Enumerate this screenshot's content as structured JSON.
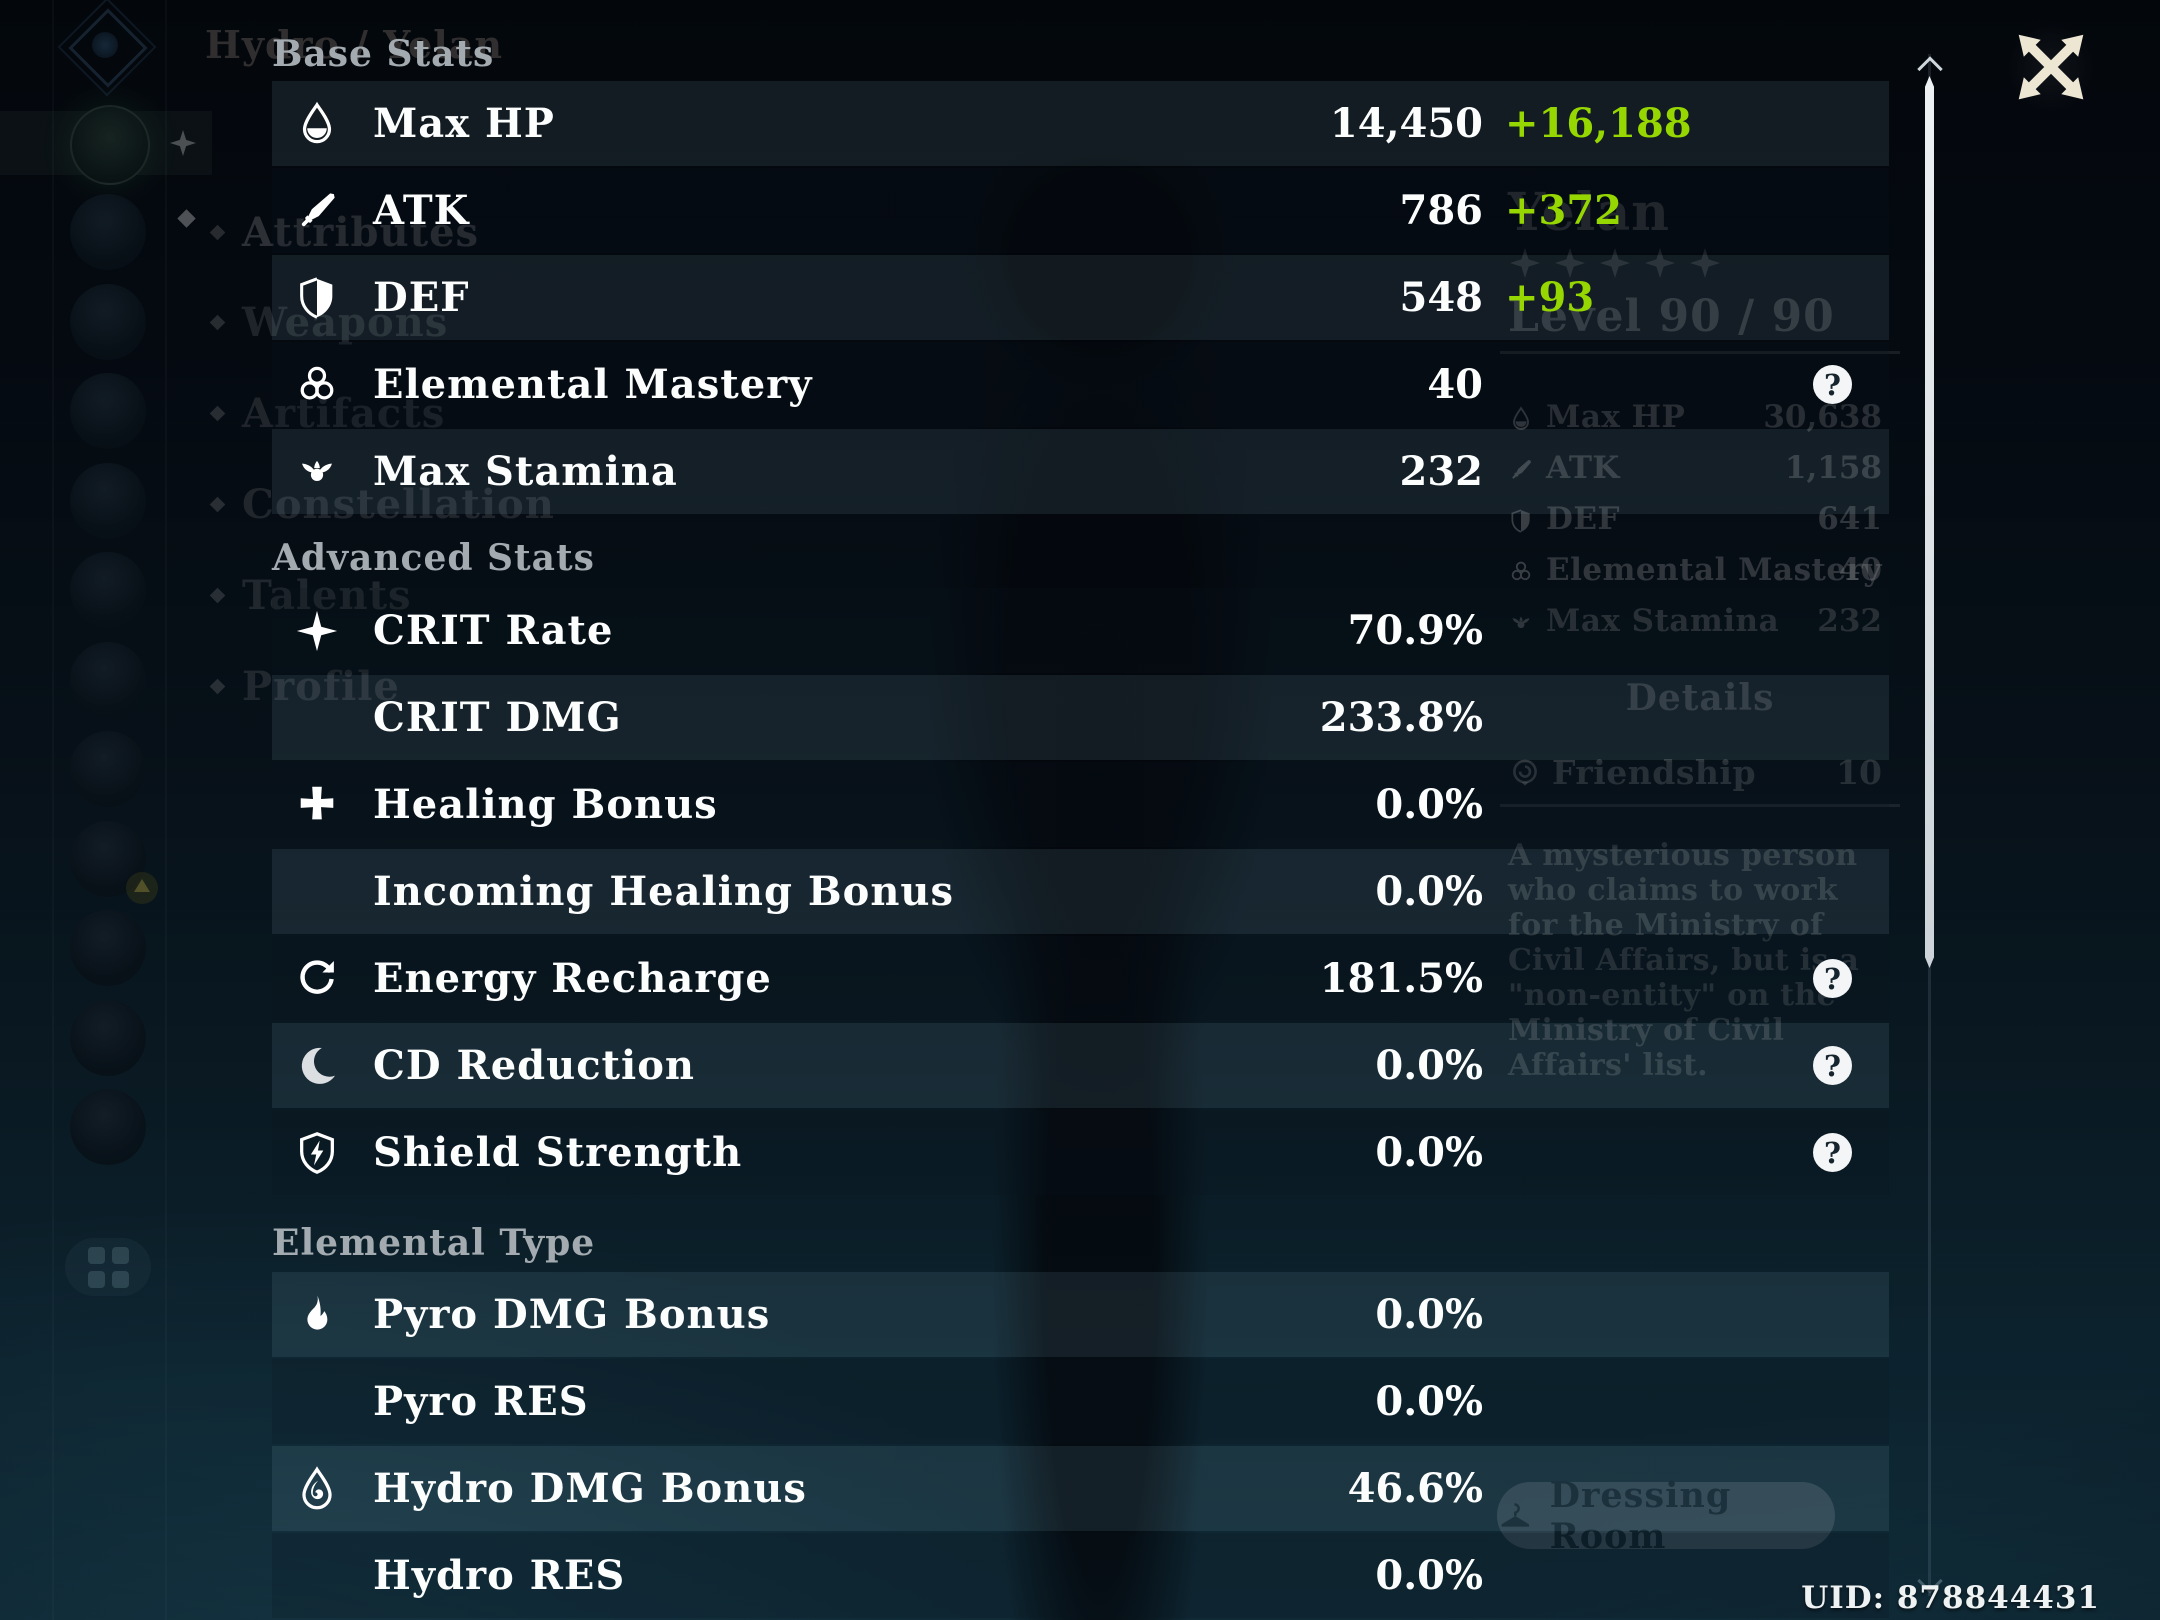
{
  "overlay": {
    "help_glyph": "?",
    "sections": [
      {
        "title": "Base Stats",
        "rows": [
          {
            "label": "Max HP",
            "icon": "hp",
            "value": "14,450",
            "bonus": "+16,188",
            "help": false
          },
          {
            "label": "ATK",
            "icon": "atk",
            "value": "786",
            "bonus": "+372",
            "help": false
          },
          {
            "label": "DEF",
            "icon": "def",
            "value": "548",
            "bonus": "+93",
            "help": false
          },
          {
            "label": "Elemental Mastery",
            "icon": "em",
            "value": "40",
            "bonus": "",
            "help": true
          },
          {
            "label": "Max Stamina",
            "icon": "stamina",
            "value": "232",
            "bonus": "",
            "help": false
          }
        ]
      },
      {
        "title": "Advanced Stats",
        "rows": [
          {
            "label": "CRIT Rate",
            "icon": "crit",
            "value": "70.9%",
            "bonus": "",
            "help": false
          },
          {
            "label": "CRIT DMG",
            "icon": "",
            "value": "233.8%",
            "bonus": "",
            "help": false
          },
          {
            "label": "Healing Bonus",
            "icon": "healing",
            "value": "0.0%",
            "bonus": "",
            "help": false
          },
          {
            "label": "Incoming Healing Bonus",
            "icon": "",
            "value": "0.0%",
            "bonus": "",
            "help": false
          },
          {
            "label": "Energy Recharge",
            "icon": "energy",
            "value": "181.5%",
            "bonus": "",
            "help": true
          },
          {
            "label": "CD Reduction",
            "icon": "cooldown",
            "value": "0.0%",
            "bonus": "",
            "help": true
          },
          {
            "label": "Shield Strength",
            "icon": "shieldbolt",
            "value": "0.0%",
            "bonus": "",
            "help": true
          }
        ]
      },
      {
        "title": "Elemental Type",
        "rows": [
          {
            "label": "Pyro DMG Bonus",
            "icon": "pyro",
            "value": "0.0%",
            "bonus": "",
            "help": false
          },
          {
            "label": "Pyro RES",
            "icon": "",
            "value": "0.0%",
            "bonus": "",
            "help": false
          },
          {
            "label": "Hydro DMG Bonus",
            "icon": "hydro",
            "value": "46.6%",
            "bonus": "",
            "help": false
          },
          {
            "label": "Hydro RES",
            "icon": "",
            "value": "0.0%",
            "bonus": "",
            "help": false
          }
        ]
      }
    ]
  },
  "background": {
    "header": "Hydro / Yelan",
    "nav": [
      "Attributes",
      "Weapons",
      "Artifacts",
      "Constellation",
      "Talents",
      "Profile"
    ],
    "panel": {
      "name": "Yelan",
      "stars": 5,
      "level": "Level 90 / 90",
      "stats": [
        {
          "label": "Max HP",
          "icon": "hp",
          "value": "30,638"
        },
        {
          "label": "ATK",
          "icon": "atk",
          "value": "1,158"
        },
        {
          "label": "DEF",
          "icon": "def",
          "value": "641"
        },
        {
          "label": "Elemental Mastery",
          "icon": "em",
          "value": "40"
        },
        {
          "label": "Max Stamina",
          "icon": "stamina",
          "value": "232"
        }
      ],
      "details_label": "Details",
      "friendship": {
        "label": "Friendship",
        "value": "10"
      },
      "description": "A mysterious person who claims to work for the Ministry of Civil Affairs, but is a \"non-entity\" on the Ministry of Civil Affairs' list."
    },
    "dressing_room_label": "Dressing Room"
  },
  "footer": {
    "uid": "UID: 878844431"
  },
  "colors": {
    "bonus_green": "#96d701"
  }
}
